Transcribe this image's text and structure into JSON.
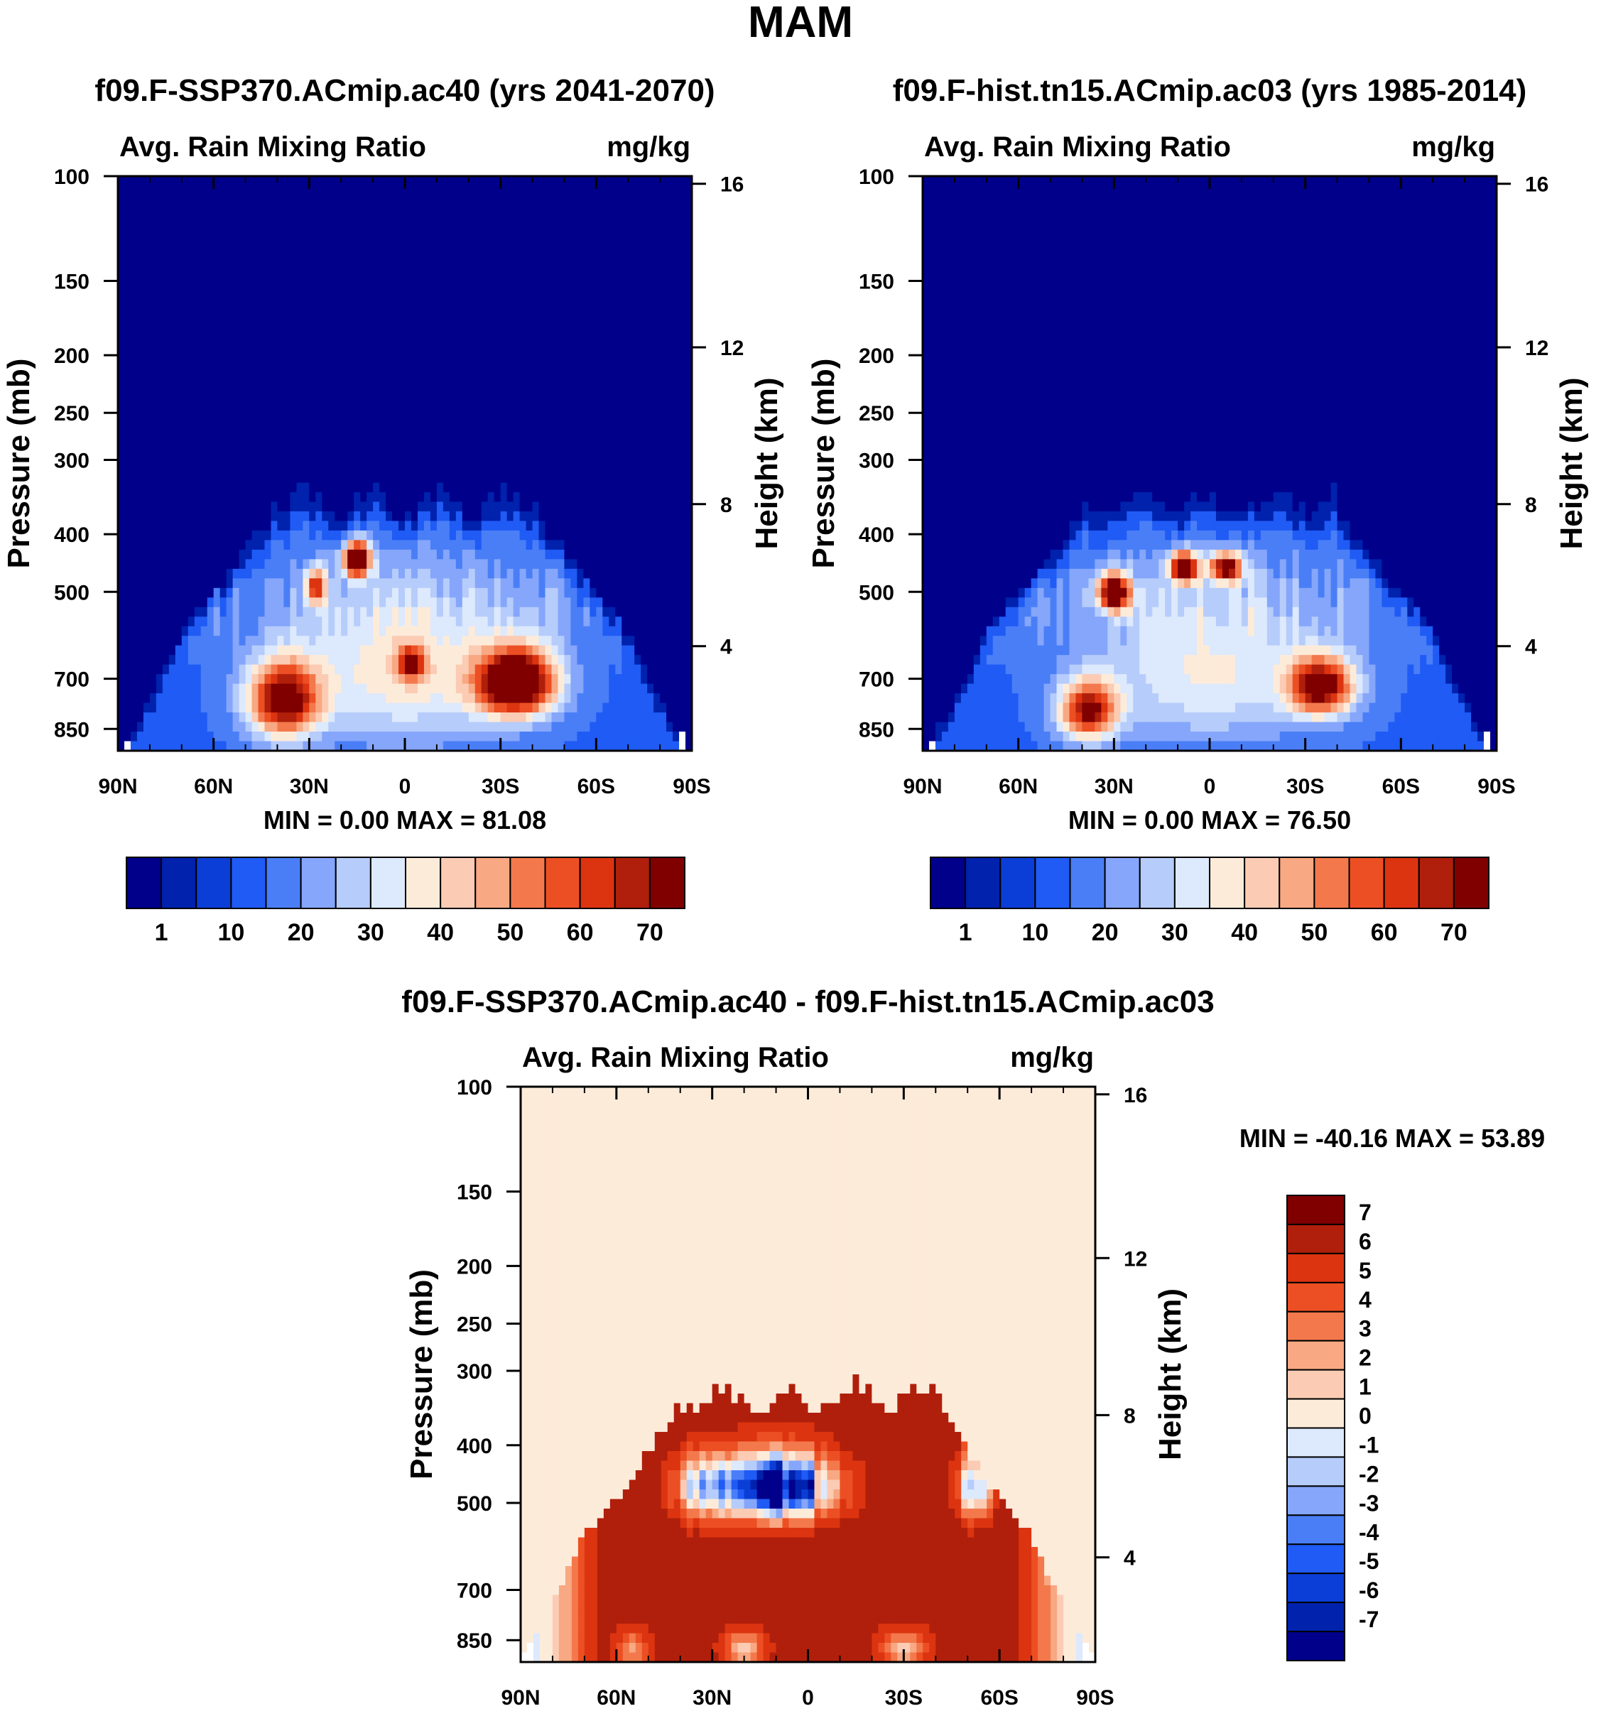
{
  "figure_title": "MAM",
  "colors": {
    "abs_levels": [
      "#00008b",
      "#0022ad",
      "#0b3ed6",
      "#1f5bf4",
      "#4a7ef7",
      "#85a6fa",
      "#b6ccfb",
      "#dde9fc",
      "#fdebda",
      "#fbcbb3",
      "#f8a882",
      "#f3794c",
      "#ec4f23",
      "#dc3410",
      "#b01f0b",
      "#800000"
    ],
    "diff_levels": [
      "#00008b",
      "#0022ad",
      "#0b3ed6",
      "#1f5bf4",
      "#4a7ef7",
      "#85a6fa",
      "#b6ccfb",
      "#dde9fc",
      "#fdebda",
      "#fbcbb3",
      "#f8a882",
      "#f3794c",
      "#ec4f23",
      "#dc3410",
      "#b01f0b",
      "#800000"
    ]
  },
  "chart_data": [
    {
      "type": "heatmap",
      "panel_id": "left",
      "title": "f09.F-SSP370.ACmip.ac40 (yrs 2041-2070)",
      "subtitle_left": "Avg. Rain Mixing Ratio",
      "subtitle_right": "mg/kg",
      "ylabel": "Pressure (mb)",
      "ylabel_right": "Height (km)",
      "x_ticks": [
        "90N",
        "60N",
        "30N",
        "0",
        "30S",
        "60S",
        "90S"
      ],
      "x_range": [
        90,
        -90
      ],
      "p_ticks": [
        "100",
        "150",
        "200",
        "250",
        "300",
        "400",
        "500",
        "700",
        "850"
      ],
      "p_range": [
        100,
        925
      ],
      "h_ticks": [
        "16",
        "12",
        "8",
        "4"
      ],
      "min_max": "MIN =    0.00   MAX =  81.08",
      "levels": [
        "1",
        "10",
        "20",
        "30",
        "40",
        "50",
        "60",
        "70"
      ],
      "blobs": [
        {
          "lat": 38,
          "p": 760,
          "sx": 11,
          "sy": 110,
          "v": 62
        },
        {
          "lat": -35,
          "p": 710,
          "sx": 12,
          "sy": 90,
          "v": 78
        },
        {
          "lat": 15,
          "p": 440,
          "sx": 4,
          "sy": 28,
          "v": 81
        },
        {
          "lat": 28,
          "p": 490,
          "sx": 3,
          "sy": 35,
          "v": 48
        },
        {
          "lat": -2,
          "p": 660,
          "sx": 4,
          "sy": 40,
          "v": 46
        },
        {
          "lat": 0,
          "p": 680,
          "sx": 35,
          "sy": 200,
          "v": 25
        }
      ]
    },
    {
      "type": "heatmap",
      "panel_id": "right",
      "title": "f09.F-hist.tn15.ACmip.ac03 (yrs 1985-2014)",
      "subtitle_left": "Avg. Rain Mixing Ratio",
      "subtitle_right": "mg/kg",
      "ylabel": "Pressure (mb)",
      "ylabel_right": "Height (km)",
      "x_ticks": [
        "90N",
        "60N",
        "30N",
        "0",
        "30S",
        "60S",
        "90S"
      ],
      "x_range": [
        90,
        -90
      ],
      "p_ticks": [
        "100",
        "150",
        "200",
        "250",
        "300",
        "400",
        "500",
        "700",
        "850"
      ],
      "p_range": [
        100,
        925
      ],
      "h_ticks": [
        "16",
        "12",
        "8",
        "4"
      ],
      "min_max": "MIN =    0.00   MAX =  76.50",
      "levels": [
        "1",
        "10",
        "20",
        "30",
        "40",
        "50",
        "60",
        "70"
      ],
      "blobs": [
        {
          "lat": 38,
          "p": 790,
          "sx": 9,
          "sy": 90,
          "v": 56
        },
        {
          "lat": -35,
          "p": 720,
          "sx": 10,
          "sy": 80,
          "v": 62
        },
        {
          "lat": 30,
          "p": 500,
          "sx": 5,
          "sy": 35,
          "v": 72
        },
        {
          "lat": 8,
          "p": 455,
          "sx": 4,
          "sy": 25,
          "v": 76
        },
        {
          "lat": -5,
          "p": 455,
          "sx": 5,
          "sy": 25,
          "v": 60
        },
        {
          "lat": 0,
          "p": 680,
          "sx": 35,
          "sy": 200,
          "v": 22
        }
      ]
    },
    {
      "type": "heatmap",
      "panel_id": "diff",
      "title": "f09.F-SSP370.ACmip.ac40 - f09.F-hist.tn15.ACmip.ac03",
      "subtitle_left": "Avg. Rain Mixing Ratio",
      "subtitle_right": "mg/kg",
      "ylabel": "Pressure (mb)",
      "ylabel_right": "Height (km)",
      "x_ticks": [
        "90N",
        "60N",
        "30N",
        "0",
        "30S",
        "60S",
        "90S"
      ],
      "x_range": [
        90,
        -90
      ],
      "p_ticks": [
        "100",
        "150",
        "200",
        "250",
        "300",
        "400",
        "500",
        "700",
        "850"
      ],
      "p_range": [
        100,
        925
      ],
      "h_ticks": [
        "16",
        "12",
        "8",
        "4"
      ],
      "min_max": "MIN = -40.16  MAX =  53.89",
      "levels": [
        "7",
        "6",
        "5",
        "4",
        "3",
        "2",
        "1",
        "0",
        "-1",
        "-2",
        "-3",
        "-4",
        "-5",
        "-6",
        "-7"
      ]
    }
  ]
}
